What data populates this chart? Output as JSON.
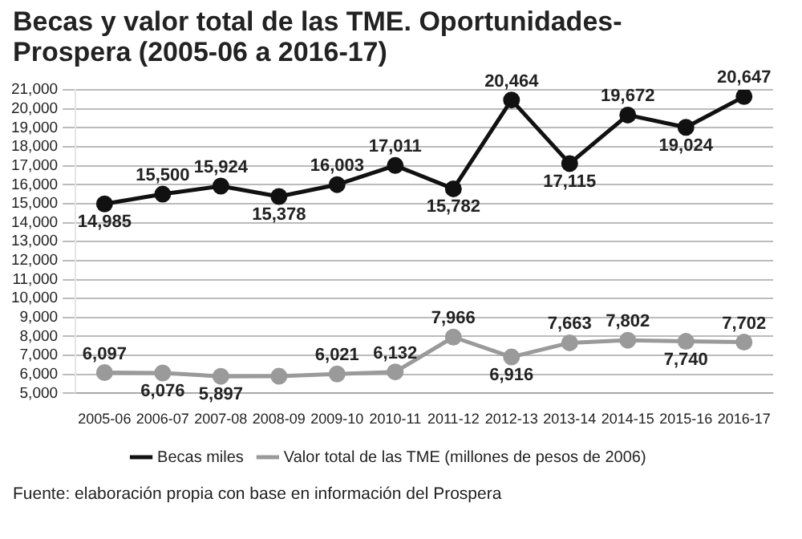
{
  "chart_data": {
    "type": "line",
    "title": "Becas y valor total de las TME. Oportunidades-Prospera (2005-06 a 2016-17)",
    "categories": [
      "2005-06",
      "2006-07",
      "2007-08",
      "2008-09",
      "2009-10",
      "2010-11",
      "2011-12",
      "2012-13",
      "2013-14",
      "2014-15",
      "2015-16",
      "2016-17"
    ],
    "series": [
      {
        "name": "Becas miles",
        "color": "#111111",
        "values": [
          14985,
          15500,
          15924,
          15378,
          16003,
          17011,
          15782,
          20464,
          17115,
          19672,
          19024,
          20647
        ],
        "value_labels": [
          "14,985",
          "15,500",
          "15,924",
          "15,378",
          "16,003",
          "17,011",
          "15,782",
          "20,464",
          "17,115",
          "19,672",
          "19,024",
          "20,647"
        ]
      },
      {
        "name": "Valor total de las TME (millones de pesos de 2006)",
        "color": "#9a9a9a",
        "values": [
          6097,
          6076,
          5897,
          5900,
          6021,
          6132,
          7966,
          6916,
          7663,
          7802,
          7740,
          7702
        ],
        "value_labels": [
          "6,097",
          "6,076",
          "5,897",
          null,
          "6,021",
          "6,132",
          "7,966",
          "6,916",
          "7,663",
          "7,802",
          "7,740",
          "7,702"
        ]
      }
    ],
    "ylim": [
      5000,
      21000
    ],
    "yticks": [
      {
        "value": 5000,
        "label": "5,000"
      },
      {
        "value": 6000,
        "label": "6,000"
      },
      {
        "value": 7000,
        "label": "7,000"
      },
      {
        "value": 8000,
        "label": "8,000"
      },
      {
        "value": 9000,
        "label": "9,000"
      },
      {
        "value": 10000,
        "label": "10,000"
      },
      {
        "value": 11000,
        "label": "11,000"
      },
      {
        "value": 12000,
        "label": "12,000"
      },
      {
        "value": 13000,
        "label": "13,000"
      },
      {
        "value": 14000,
        "label": "14,000"
      },
      {
        "value": 15000,
        "label": "15,000"
      },
      {
        "value": 16000,
        "label": "16,000"
      },
      {
        "value": 17000,
        "label": "17,000"
      },
      {
        "value": 18000,
        "label": "18,000"
      },
      {
        "value": 19000,
        "label": "19,000"
      },
      {
        "value": 20000,
        "label": "20,000"
      },
      {
        "value": 21000,
        "label": "21,000"
      }
    ],
    "grid": "y",
    "legend": "bottom",
    "marker": "circle",
    "line_style": "solid",
    "annotations": [
      "Fuente: elaboración propia con base en información del Prospera"
    ]
  }
}
